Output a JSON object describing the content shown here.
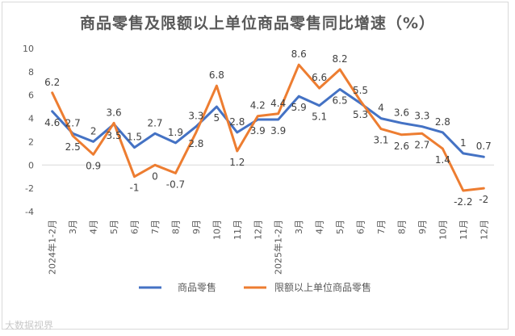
{
  "chart_data": {
    "type": "line",
    "title": "商品零售及限额以上单位商品零售同比增速（%）",
    "categories": [
      "2024年1-2月",
      "3月",
      "4月",
      "5月",
      "6月",
      "7月",
      "8月",
      "9月",
      "10月",
      "11月",
      "12月",
      "2025年1-2月",
      "3月",
      "4月",
      "5月",
      "6月",
      "7月",
      "8月",
      "9月",
      "10月",
      "11月",
      "12月"
    ],
    "series": [
      {
        "name": "商品零售",
        "color": "#4472c4",
        "values": [
          4.6,
          2.7,
          2,
          3.5,
          1.5,
          2.7,
          1.9,
          3.3,
          5,
          2.8,
          3.9,
          3.9,
          5.9,
          5.1,
          6.5,
          5.3,
          4,
          3.6,
          3.3,
          2.8,
          1,
          0.7
        ]
      },
      {
        "name": "限额以上单位商品零售",
        "color": "#ed7d31",
        "values": [
          6.2,
          2.5,
          0.9,
          3.6,
          -1,
          0,
          -0.7,
          2.8,
          6.8,
          1.2,
          4.2,
          4.4,
          8.6,
          6.6,
          8.2,
          5.5,
          3.1,
          2.6,
          2.7,
          1.4,
          -2.2,
          -2
        ]
      }
    ],
    "ylim": [
      -4,
      10
    ],
    "yticks": [
      "10",
      "8",
      "6",
      "4",
      "2",
      "0",
      "-2",
      "-4"
    ],
    "legend_position": "bottom",
    "grid": false
  },
  "watermark": "大数据视界"
}
